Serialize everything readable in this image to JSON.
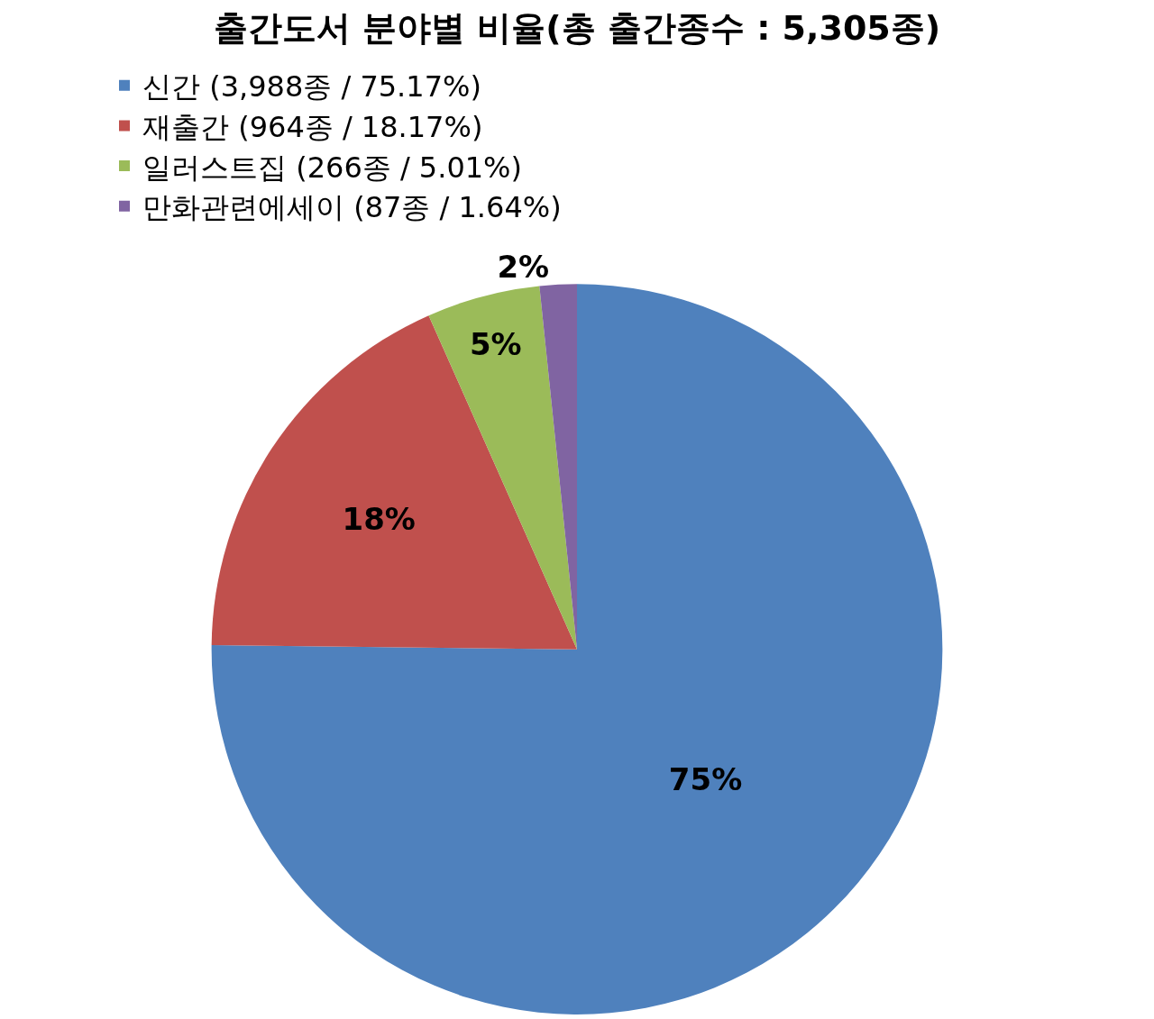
{
  "chart_data": {
    "type": "pie",
    "title": "출간도서 분야별 비율(총 출간종수 : 5,305종)",
    "categories": [
      "신간 (3,988종 / 75.17%)",
      "재출간 (964종 / 18.17%)",
      "일러스트집 (266종 / 5.01%)",
      "만화관련에세이 (87종 / 1.64%)"
    ],
    "values": [
      75.17,
      18.17,
      5.01,
      1.64
    ],
    "value_labels": [
      "75%",
      "18%",
      "5%",
      "2%"
    ],
    "colors": [
      "#4f81bd",
      "#c0504d",
      "#9bbb59",
      "#8064a2"
    ],
    "legend": "top"
  }
}
